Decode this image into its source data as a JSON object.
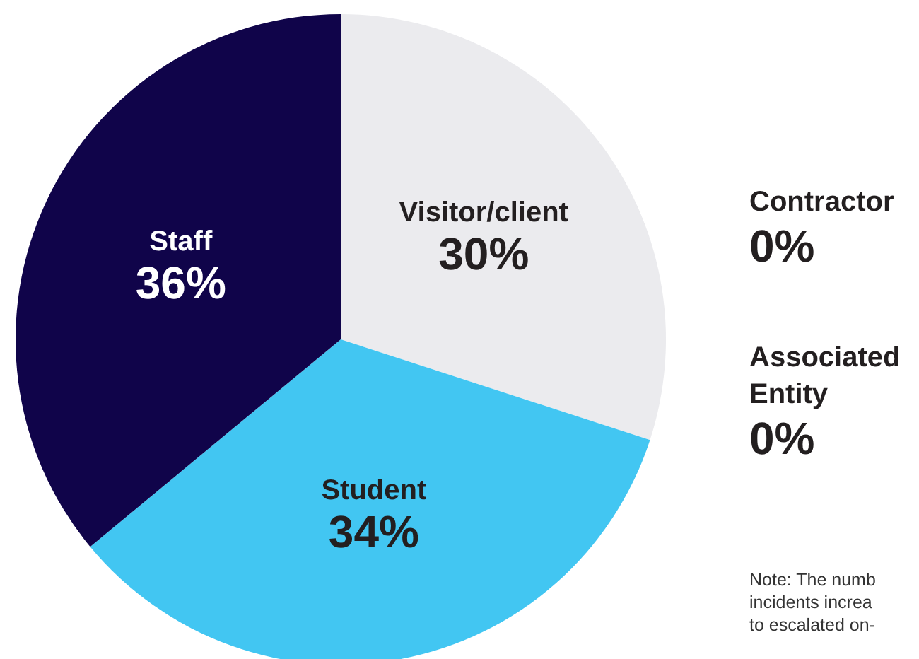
{
  "chart_data": {
    "type": "pie",
    "categories": [
      "Visitor/client",
      "Student",
      "Staff",
      "Contractor",
      "Associated Entity"
    ],
    "values": [
      30,
      34,
      36,
      0,
      0
    ],
    "colors": [
      "#ebebee",
      "#42c6f2",
      "#10044a",
      null,
      null
    ],
    "value_labels": [
      "30%",
      "34%",
      "36%",
      "0%",
      "0%"
    ],
    "annotations": [
      "Note: The numb\nincidents increa\nto escalated on-"
    ]
  }
}
